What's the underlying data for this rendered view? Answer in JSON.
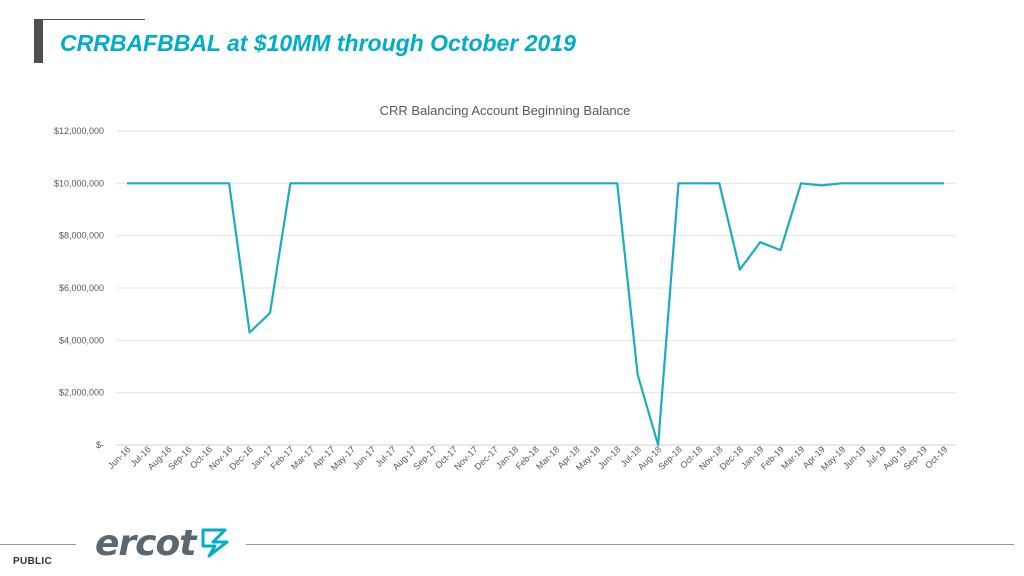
{
  "slide": {
    "title": "CRRBAFBBAL at $10MM through October 2019",
    "footer_label": "PUBLIC",
    "logo_text": "ercot"
  },
  "colors": {
    "title": "#00AEC7",
    "series": "#1AACBF",
    "gridline": "#e4e4e4"
  },
  "chart_data": {
    "type": "line",
    "title": "CRR Balancing Account Beginning Balance",
    "xlabel": "",
    "ylabel": "",
    "ylim": [
      0,
      12000000
    ],
    "yticks": [
      0,
      2000000,
      4000000,
      6000000,
      8000000,
      10000000,
      12000000
    ],
    "ytick_labels": [
      "$-",
      "$2,000,000",
      "$4,000,000",
      "$6,000,000",
      "$8,000,000",
      "$10,000,000",
      "$12,000,000"
    ],
    "grid": true,
    "legend": "none",
    "categories": [
      "Jun-16",
      "Jul-16",
      "Aug-16",
      "Sep-16",
      "Oct-16",
      "Nov-16",
      "Dec-16",
      "Jan-17",
      "Feb-17",
      "Mar-17",
      "Apr-17",
      "May-17",
      "Jun-17",
      "Jul-17",
      "Aug-17",
      "Sep-17",
      "Oct-17",
      "Nov-17",
      "Dec-17",
      "Jan-18",
      "Feb-18",
      "Mar-18",
      "Apr-18",
      "May-18",
      "Jun-18",
      "Jul-18",
      "Aug-18",
      "Sep-18",
      "Oct-18",
      "Nov-18",
      "Dec-18",
      "Jan-19",
      "Feb-19",
      "Mar-19",
      "Apr-19",
      "May-19",
      "Jun-19",
      "Jul-19",
      "Aug-19",
      "Sep-19",
      "Oct-19"
    ],
    "series": [
      {
        "values": [
          10000000,
          10000000,
          10000000,
          10000000,
          10000000,
          10000000,
          4300000,
          5050000,
          10000000,
          10000000,
          10000000,
          10000000,
          10000000,
          10000000,
          10000000,
          10000000,
          10000000,
          10000000,
          10000000,
          10000000,
          10000000,
          10000000,
          10000000,
          10000000,
          10000000,
          2700000,
          0,
          10000000,
          10000000,
          10000000,
          6700000,
          7750000,
          7450000,
          10000000,
          9920000,
          10000000,
          10000000,
          10000000,
          10000000,
          10000000,
          10000000
        ]
      }
    ]
  }
}
